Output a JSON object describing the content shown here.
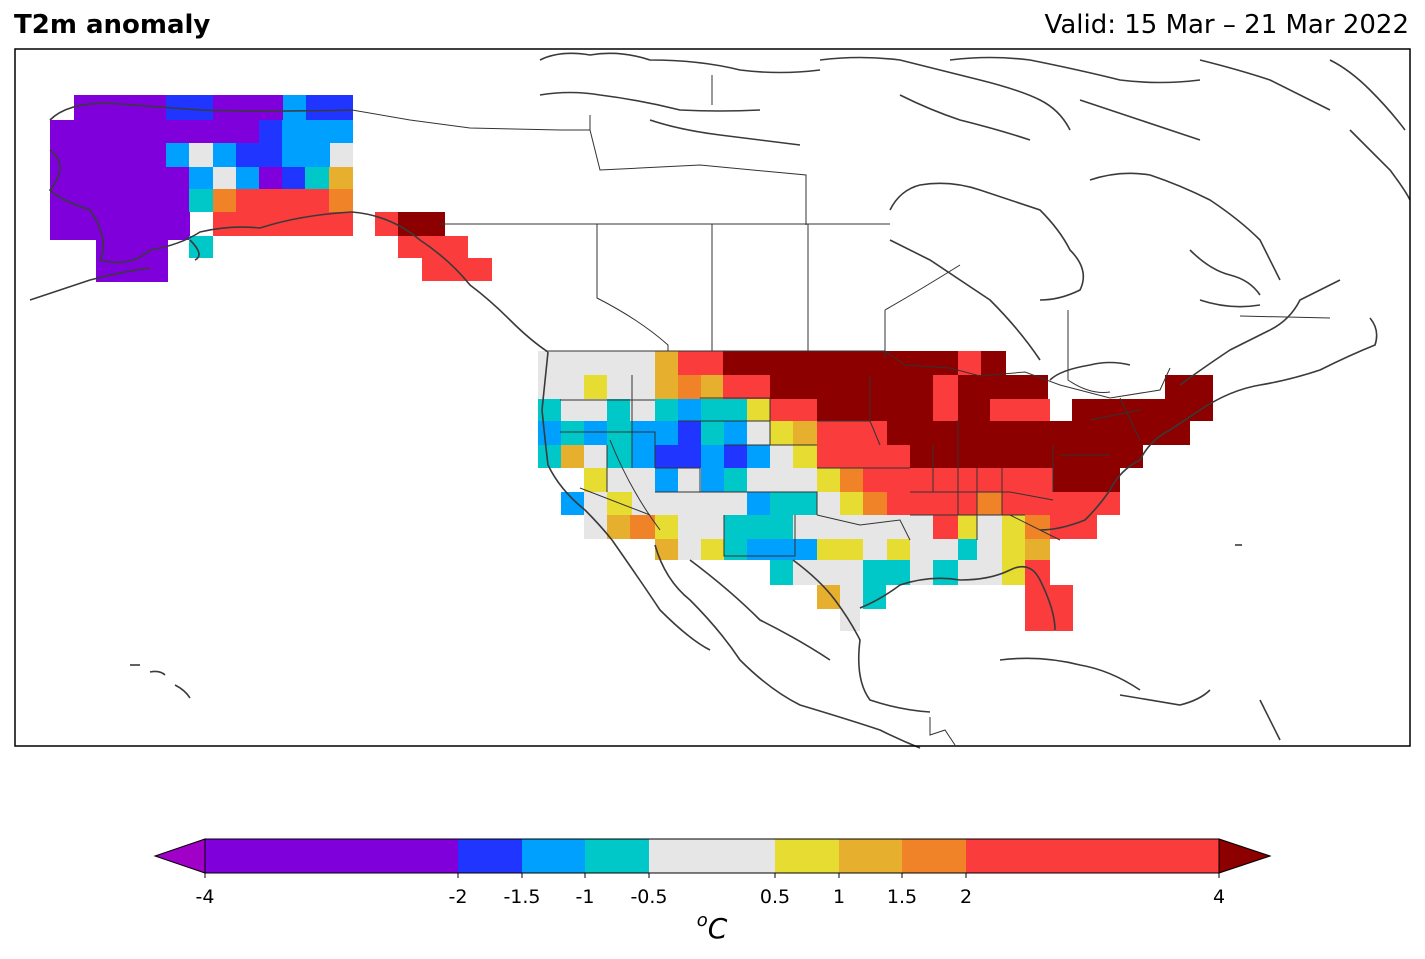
{
  "header": {
    "title": "T2m anomaly",
    "valid": "Valid: 15 Mar – 21 Mar 2022"
  },
  "colorbar": {
    "unit_base": "o",
    "unit": "C",
    "ticks": [
      "-4",
      "-2",
      "-1.5",
      "-1",
      "-0.5",
      "0.5",
      "1",
      "1.5",
      "2",
      "4"
    ],
    "bins": [
      {
        "from": -4,
        "to": -2,
        "color": "#7f00db"
      },
      {
        "from": -2,
        "to": -1.5,
        "color": "#2035ff"
      },
      {
        "from": -1.5,
        "to": -1,
        "color": "#00a0ff"
      },
      {
        "from": -1,
        "to": -0.5,
        "color": "#00c8c8"
      },
      {
        "from": -0.5,
        "to": 0.5,
        "color": "#e6e6e6"
      },
      {
        "from": 0.5,
        "to": 1,
        "color": "#e6dc32"
      },
      {
        "from": 1,
        "to": 1.5,
        "color": "#e6af2d"
      },
      {
        "from": 1.5,
        "to": 2,
        "color": "#f08228"
      },
      {
        "from": 2,
        "to": 4,
        "color": "#fa3c3c"
      }
    ],
    "under_color": "#a000c8",
    "over_color": "#8c0000"
  }
}
